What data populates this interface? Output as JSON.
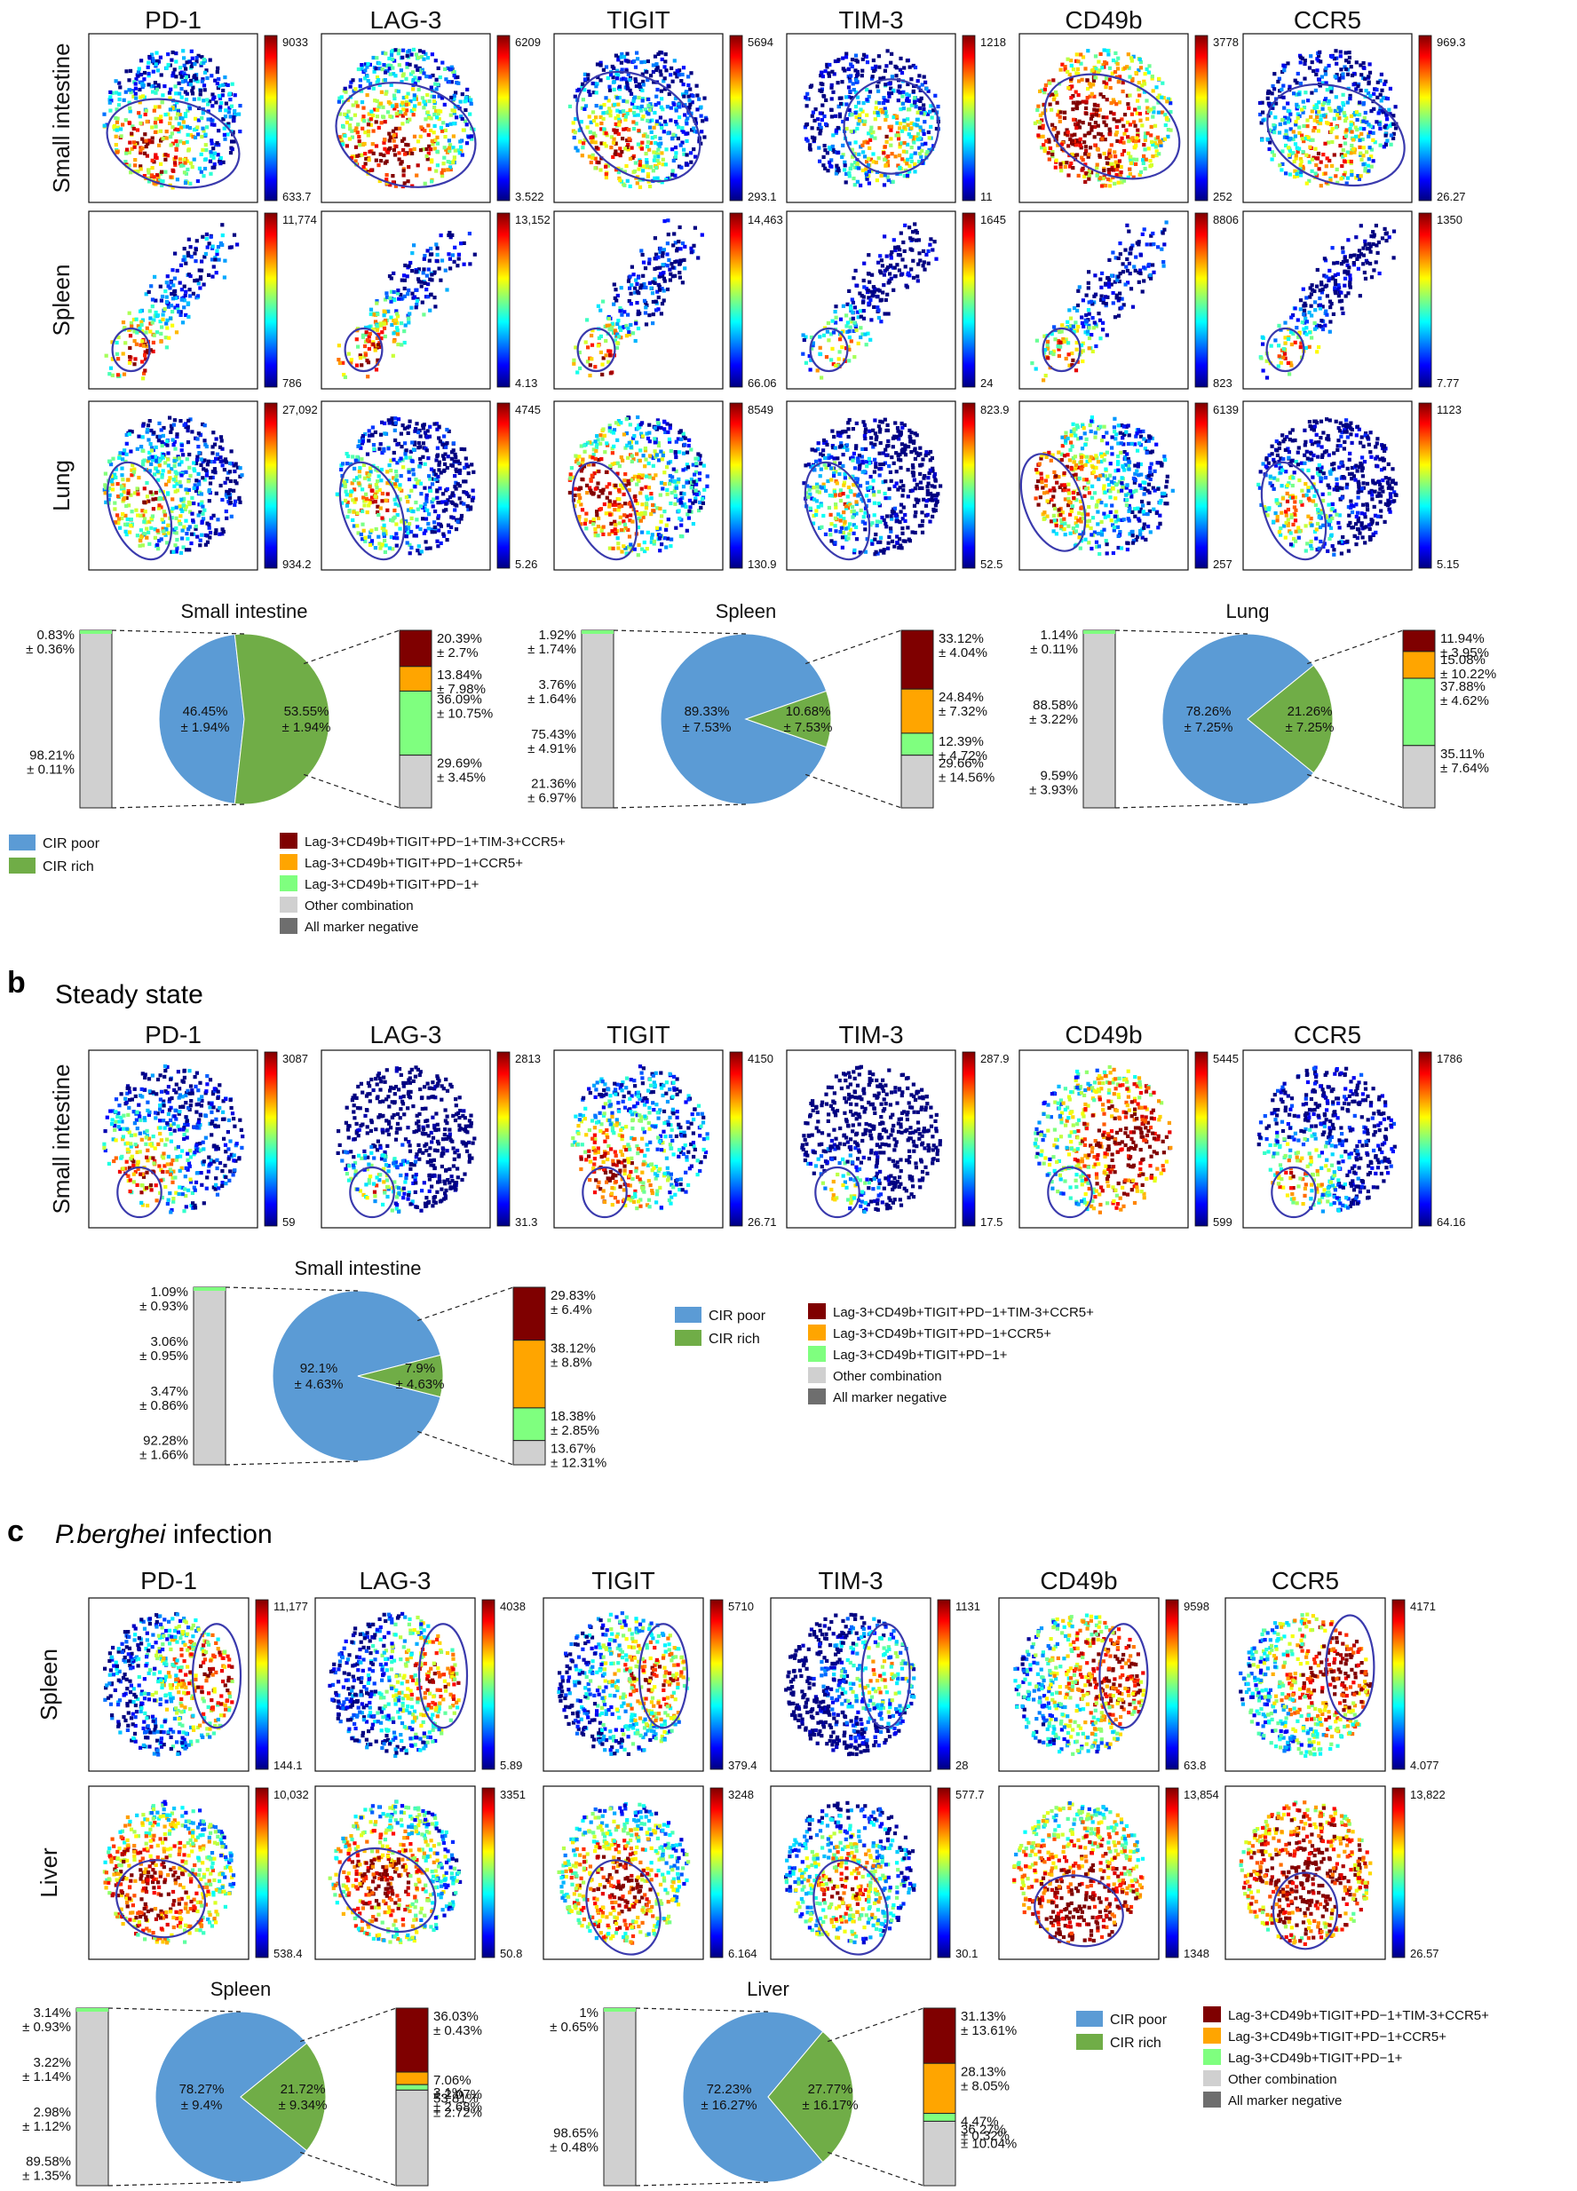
{
  "colorbar_gradient": [
    "#00007f",
    "#0000ff",
    "#007fff",
    "#00ffff",
    "#7fff7f",
    "#ffff00",
    "#ff7f00",
    "#ff0000",
    "#7f0000"
  ],
  "colors": {
    "cir_poor": "#5b9bd5",
    "cir_rich": "#70ad47",
    "lag3_full": "#7f0000",
    "lag3_ccr5": "#ffa500",
    "lag3_pd1": "#7fff7f",
    "other": "#d0d0d0",
    "negative": "#6e6e6e",
    "ellipse": "#3a3aad"
  },
  "pie_legend": [
    {
      "label": "CIR poor",
      "color": "#5b9bd5"
    },
    {
      "label": "CIR rich",
      "color": "#70ad47"
    }
  ],
  "bar_legend": [
    {
      "label": "Lag-3+CD49b+TIGIT+PD−1+TIM-3+CCR5+",
      "color": "#7f0000"
    },
    {
      "label": "Lag-3+CD49b+TIGIT+PD−1+CCR5+",
      "color": "#ffa500"
    },
    {
      "label": "Lag-3+CD49b+TIGIT+PD−1+",
      "color": "#7fff7f"
    },
    {
      "label": "Other combination",
      "color": "#d0d0d0"
    },
    {
      "label": "All marker negative",
      "color": "#6e6e6e"
    }
  ],
  "panel_a": {
    "markers": [
      "PD-1",
      "LAG-3",
      "TIGIT",
      "TIM-3",
      "CD49b",
      "CCR5"
    ],
    "rows": [
      {
        "tissue": "Small intestine",
        "max": [
          "9033",
          "6209",
          "5694",
          "1218",
          "3778",
          "969.3"
        ],
        "min": [
          "633.7",
          "3.522",
          "293.1",
          "11",
          "252",
          "26.27"
        ]
      },
      {
        "tissue": "Spleen",
        "max": [
          "11,774",
          "13,152",
          "14,463",
          "1645",
          "8806",
          "1350"
        ],
        "min": [
          "786",
          "4.13",
          "66.06",
          "24",
          "823",
          "7.77"
        ]
      },
      {
        "tissue": "Lung",
        "max": [
          "27,092",
          "4745",
          "8549",
          "823.9",
          "6139",
          "1123"
        ],
        "min": [
          "934.2",
          "5.26",
          "130.9",
          "52.5",
          "257",
          "5.15"
        ]
      }
    ],
    "pies": [
      {
        "title": "Small intestine",
        "bar_left": [
          "0.83%",
          "± 0.36%",
          "98.21%",
          "± 0.11%"
        ],
        "pie_poor": [
          "46.45%",
          "± 1.94%"
        ],
        "pie_rich": [
          "53.55%",
          "± 1.94%"
        ],
        "bar_right": [
          "20.39%",
          "± 2.7%",
          "13.84%",
          "± 7.98%",
          "36.09%",
          "± 10.75%",
          "29.69%",
          "± 3.45%"
        ]
      },
      {
        "title": "Spleen",
        "bar_left": [
          "1.92%",
          "± 1.74%",
          "3.76%",
          "± 1.64%",
          "75.43%",
          "± 4.91%",
          "21.36%",
          "± 6.97%"
        ],
        "pie_poor": [
          "89.33%",
          "± 7.53%"
        ],
        "pie_rich": [
          "10.68%",
          "± 7.53%"
        ],
        "bar_right": [
          "33.12%",
          "± 4.04%",
          "24.84%",
          "± 7.32%",
          "12.39%",
          "± 4.72%",
          "29.66%",
          "± 14.56%"
        ]
      },
      {
        "title": "Lung",
        "bar_left": [
          "1.14%",
          "± 0.11%",
          "88.58%",
          "± 3.22%",
          "9.59%",
          "± 3.93%"
        ],
        "pie_poor": [
          "78.26%",
          "± 7.25%"
        ],
        "pie_rich": [
          "21.26%",
          "± 7.25%"
        ],
        "bar_right": [
          "11.94%",
          "± 3.95%",
          "15.08%",
          "± 10.22%",
          "37.88%",
          "± 4.62%",
          "35.11%",
          "± 7.64%"
        ]
      }
    ]
  },
  "panel_b": {
    "letter": "b",
    "title": "Steady state",
    "markers": [
      "PD-1",
      "LAG-3",
      "TIGIT",
      "TIM-3",
      "CD49b",
      "CCR5"
    ],
    "rows": [
      {
        "tissue": "Small intestine",
        "max": [
          "3087",
          "2813",
          "4150",
          "287.9",
          "5445",
          "1786"
        ],
        "min": [
          "59",
          "31.3",
          "26.71",
          "17.5",
          "599",
          "64.16"
        ]
      }
    ],
    "pie": {
      "title": "Small intestine",
      "bar_left": [
        "1.09%",
        "± 0.93%",
        "3.06%",
        "± 0.95%",
        "3.47%",
        "± 0.86%",
        "92.28%",
        "± 1.66%"
      ],
      "pie_poor": [
        "92.1%",
        "± 4.63%"
      ],
      "pie_rich": [
        "7.9%",
        "± 4.63%"
      ],
      "bar_right": [
        "29.83%",
        "± 6.4%",
        "38.12%",
        "± 8.8%",
        "18.38%",
        "± 2.85%",
        "13.67%",
        "± 12.31%"
      ]
    }
  },
  "panel_c": {
    "letter": "c",
    "title_italic": "P.berghei",
    "title_rest": " infection",
    "markers": [
      "PD-1",
      "LAG-3",
      "TIGIT",
      "TIM-3",
      "CD49b",
      "CCR5"
    ],
    "rows": [
      {
        "tissue": "Spleen",
        "max": [
          "11,177",
          "4038",
          "5710",
          "1131",
          "9598",
          "4171"
        ],
        "min": [
          "144.1",
          "5.89",
          "379.4",
          "28",
          "63.8",
          "4.077"
        ]
      },
      {
        "tissue": "Liver",
        "max": [
          "10,032",
          "3351",
          "3248",
          "577.7",
          "13,854",
          "13,822"
        ],
        "min": [
          "538.4",
          "50.8",
          "6.164",
          "30.1",
          "1348",
          "26.57"
        ]
      }
    ],
    "pies": [
      {
        "title": "Spleen",
        "bar_left": [
          "3.14%",
          "± 0.93%",
          "3.22%",
          "± 1.14%",
          "2.98%",
          "± 1.12%",
          "89.58%",
          "± 1.35%"
        ],
        "pie_poor": [
          "78.27%",
          "± 9.4%"
        ],
        "pie_rich": [
          "21.72%",
          "± 9.34%"
        ],
        "bar_right": [
          "36.03%",
          "± 0.43%",
          "7.06%",
          "± 2.07%",
          "3.1%",
          "± 2.68%",
          "53.81%",
          "± 2.72%"
        ]
      },
      {
        "title": "Liver",
        "bar_left": [
          "1%",
          "± 0.65%",
          "98.65%",
          "± 0.48%"
        ],
        "pie_poor": [
          "72.23%",
          "± 16.27%"
        ],
        "pie_rich": [
          "27.77%",
          "± 16.17%"
        ],
        "bar_right": [
          "31.13%",
          "± 13.61%",
          "28.13%",
          "± 8.05%",
          "4.47%",
          "± 0.32%",
          "36.27%",
          "± 10.04%"
        ]
      }
    ]
  }
}
